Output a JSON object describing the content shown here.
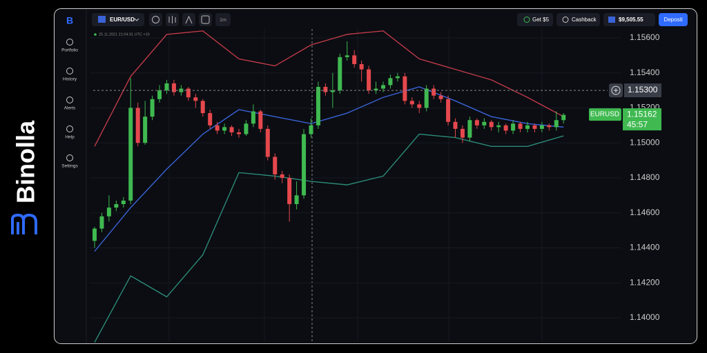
{
  "brand": {
    "name": "Binolla"
  },
  "sidebar": {
    "items": [
      "Portfolio",
      "History",
      "Alerts",
      "Help",
      "Settings"
    ]
  },
  "topbar": {
    "pair": "EUR/USD",
    "timeframe": "1m",
    "bonus": "Get $5",
    "cashback": "Cashback",
    "balance": "$9,505.55",
    "deposit": "Deposit"
  },
  "chart_data": {
    "type": "candlestick",
    "timestamp": "25.11.2021 21:04:31 UTC +10",
    "symbol": "EURUSD",
    "current_price": 1.15162,
    "timer": "45:57",
    "crosshair": {
      "value": 1.153,
      "label": "1.15300"
    },
    "ylim": [
      1.13866,
      1.15651
    ],
    "yticks": [
      {
        "value": 1.156,
        "label": "1.15600"
      },
      {
        "value": 1.154,
        "label": "1.15400"
      },
      {
        "value": 1.152,
        "label": "1.15200"
      },
      {
        "value": 1.15,
        "label": "1.15000"
      },
      {
        "value": 1.148,
        "label": "1.14800"
      },
      {
        "value": 1.146,
        "label": "1.14600"
      },
      {
        "value": 1.144,
        "label": "1.14400"
      },
      {
        "value": 1.142,
        "label": "1.14200"
      },
      {
        "value": 1.14,
        "label": "1.14000"
      }
    ],
    "up_color": "#3fb950",
    "down_color": "#e5484d",
    "open": [
      1.1444,
      1.1451,
      1.1458,
      1.1463,
      1.1465,
      1.1467,
      1.152,
      1.15,
      1.1515,
      1.1525,
      1.153,
      1.1534,
      1.1529,
      1.1531,
      1.1526,
      1.1524,
      1.1517,
      1.151,
      1.1507,
      1.1509,
      1.1506,
      1.1505,
      1.1511,
      1.1518,
      1.1508,
      1.1492,
      1.1482,
      1.148,
      1.1465,
      1.147,
      1.1505,
      1.151,
      1.1532,
      1.1529,
      1.153,
      1.1549,
      1.155,
      1.1545,
      1.1542,
      1.153,
      1.1531,
      1.1533,
      1.1537,
      1.1538,
      1.1524,
      1.1522,
      1.152,
      1.1531,
      1.1527,
      1.1525,
      1.1512,
      1.1508,
      1.1503,
      1.1513,
      1.151,
      1.1512,
      1.1509,
      1.151,
      1.1507,
      1.1511,
      1.1508,
      1.151,
      1.1508,
      1.151,
      1.1509,
      1.1513
    ],
    "high": [
      1.1452,
      1.146,
      1.147,
      1.1467,
      1.1469,
      1.1537,
      1.1523,
      1.1524,
      1.1527,
      1.1533,
      1.1536,
      1.1536,
      1.1533,
      1.1532,
      1.1528,
      1.1525,
      1.1519,
      1.1512,
      1.1511,
      1.151,
      1.1508,
      1.1513,
      1.1522,
      1.1519,
      1.151,
      1.1494,
      1.1484,
      1.1482,
      1.1478,
      1.1508,
      1.1514,
      1.1535,
      1.1534,
      1.154,
      1.1551,
      1.1558,
      1.1553,
      1.1547,
      1.1544,
      1.1535,
      1.1535,
      1.1539,
      1.154,
      1.154,
      1.1526,
      1.1524,
      1.1533,
      1.1533,
      1.1529,
      1.1527,
      1.1514,
      1.151,
      1.1515,
      1.1514,
      1.1514,
      1.1513,
      1.1512,
      1.1511,
      1.1513,
      1.1512,
      1.1512,
      1.1511,
      1.1512,
      1.1511,
      1.1518,
      1.1517
    ],
    "low": [
      1.144,
      1.1449,
      1.1455,
      1.1461,
      1.1463,
      1.1465,
      1.1498,
      1.1499,
      1.1513,
      1.1523,
      1.1528,
      1.1527,
      1.1527,
      1.1524,
      1.152,
      1.1515,
      1.1508,
      1.1505,
      1.1505,
      1.1504,
      1.1503,
      1.1504,
      1.1509,
      1.1506,
      1.149,
      1.1479,
      1.1477,
      1.1455,
      1.1462,
      1.1468,
      1.1503,
      1.1508,
      1.1527,
      1.152,
      1.1528,
      1.1547,
      1.1543,
      1.1535,
      1.1528,
      1.1528,
      1.1529,
      1.1531,
      1.1535,
      1.1522,
      1.152,
      1.1517,
      1.1518,
      1.1525,
      1.1523,
      1.151,
      1.1503,
      1.15,
      1.1501,
      1.1508,
      1.1508,
      1.1507,
      1.1506,
      1.1505,
      1.1505,
      1.1506,
      1.1506,
      1.1506,
      1.1506,
      1.1507,
      1.1507,
      1.1511
    ],
    "close": [
      1.1451,
      1.1458,
      1.1463,
      1.1465,
      1.1467,
      1.152,
      1.15,
      1.1515,
      1.1525,
      1.153,
      1.1534,
      1.1529,
      1.1531,
      1.1526,
      1.1524,
      1.1517,
      1.151,
      1.1507,
      1.1509,
      1.1506,
      1.1505,
      1.1511,
      1.1518,
      1.1508,
      1.1492,
      1.1482,
      1.148,
      1.1465,
      1.147,
      1.1505,
      1.151,
      1.1532,
      1.1529,
      1.153,
      1.1549,
      1.155,
      1.1545,
      1.1542,
      1.153,
      1.1531,
      1.1533,
      1.1537,
      1.1538,
      1.1524,
      1.1522,
      1.152,
      1.1531,
      1.1527,
      1.1525,
      1.1512,
      1.1508,
      1.1503,
      1.1513,
      1.151,
      1.1512,
      1.1509,
      1.151,
      1.1507,
      1.1511,
      1.1508,
      1.151,
      1.1508,
      1.151,
      1.1509,
      1.1513,
      1.1516
    ],
    "bands": [
      {
        "color": "#c23b4a",
        "x": [
          0,
          5,
          10,
          15,
          20,
          25,
          30,
          35,
          40,
          45,
          50,
          55,
          60,
          65
        ],
        "values": [
          1.1498,
          1.1538,
          1.1562,
          1.1564,
          1.1548,
          1.1544,
          1.1556,
          1.1562,
          1.1564,
          1.1548,
          1.1542,
          1.1536,
          1.1526,
          1.1515
        ]
      },
      {
        "color": "#3a63d8",
        "x": [
          0,
          5,
          10,
          15,
          20,
          25,
          30,
          35,
          40,
          45,
          50,
          55,
          60,
          65
        ],
        "values": [
          1.1438,
          1.1463,
          1.1485,
          1.1505,
          1.1519,
          1.1515,
          1.1511,
          1.1517,
          1.1526,
          1.1532,
          1.1524,
          1.1515,
          1.1511,
          1.1509
        ]
      },
      {
        "color": "#2c8a78",
        "x": [
          0,
          5,
          10,
          15,
          20,
          25,
          30,
          35,
          40,
          45,
          50,
          55,
          60,
          65
        ],
        "values": [
          1.1386,
          1.1424,
          1.1412,
          1.1436,
          1.1483,
          1.1481,
          1.1478,
          1.1476,
          1.1481,
          1.1505,
          1.1503,
          1.1498,
          1.1498,
          1.1504
        ]
      }
    ]
  }
}
